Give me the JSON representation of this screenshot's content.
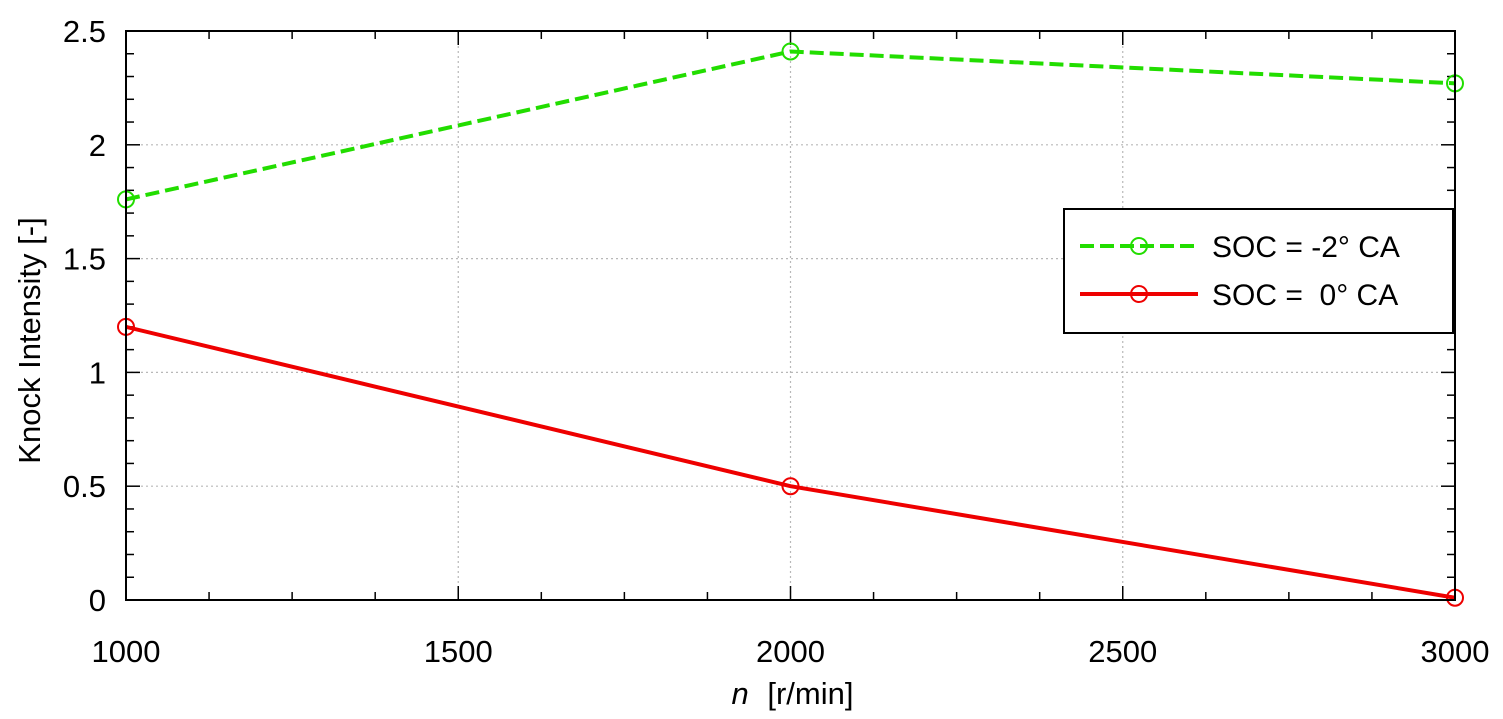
{
  "chart_data": {
    "type": "line",
    "xlabel_symbol": "n",
    "xlabel_unit": "[r/min]",
    "ylabel": "Knock Intensity [-]",
    "xlim": [
      1000,
      3000
    ],
    "ylim": [
      0,
      2.5
    ],
    "x_ticks": [
      1000,
      1500,
      2000,
      2500,
      3000
    ],
    "x_tick_labels": [
      "1000",
      "1500",
      "2000",
      "2500",
      "3000"
    ],
    "y_ticks": [
      0,
      0.5,
      1,
      1.5,
      2,
      2.5
    ],
    "y_tick_labels": [
      "0",
      "0.5",
      "1",
      "1.5",
      "2",
      "2.5"
    ],
    "grid": true,
    "legend_position": "right",
    "series": [
      {
        "name": "SOC = -2° CA",
        "color": "#22dd00",
        "line_style": "dashed",
        "marker": "circle",
        "x": [
          1000,
          2000,
          3000
        ],
        "values": [
          1.76,
          2.41,
          2.27
        ]
      },
      {
        "name": "SOC =  0° CA",
        "color": "#ee0000",
        "line_style": "solid",
        "marker": "circle",
        "x": [
          1000,
          2000,
          3000
        ],
        "values": [
          1.2,
          0.5,
          0.01
        ]
      }
    ]
  }
}
